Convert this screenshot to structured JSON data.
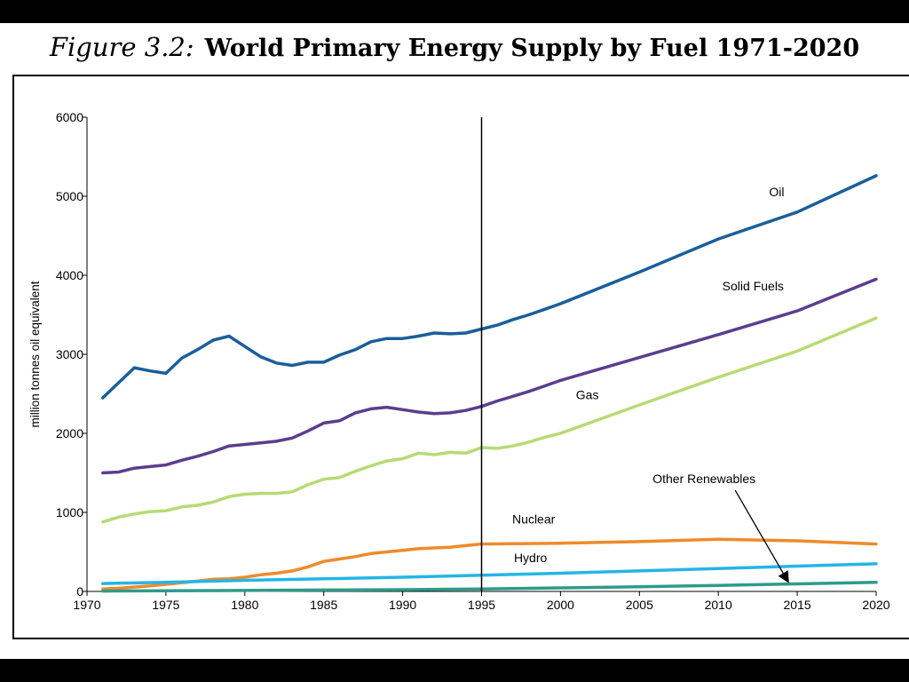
{
  "header": {
    "figure_label": "Figure 3.2:",
    "title": "World Primary Energy Supply by Fuel 1971-2020"
  },
  "chart_data": {
    "type": "line",
    "title": "World Primary Energy Supply by Fuel 1971-2020",
    "xlabel": "",
    "ylabel": "million tonnes oil equivalent",
    "xlim": [
      1970,
      2020
    ],
    "ylim": [
      0,
      6000
    ],
    "x_ticks": [
      1970,
      1975,
      1980,
      1985,
      1990,
      1995,
      2000,
      2005,
      2010,
      2015,
      2020
    ],
    "y_ticks": [
      0,
      1000,
      2000,
      3000,
      4000,
      5000,
      6000
    ],
    "grid": false,
    "legend": "inline labels",
    "reference_line": {
      "x": 1995
    },
    "series": [
      {
        "name": "Oil",
        "color": "#1b5e9b",
        "points": [
          [
            1971,
            2450
          ],
          [
            1972,
            2640
          ],
          [
            1973,
            2830
          ],
          [
            1974,
            2790
          ],
          [
            1975,
            2760
          ],
          [
            1976,
            2950
          ],
          [
            1977,
            3060
          ],
          [
            1978,
            3180
          ],
          [
            1979,
            3230
          ],
          [
            1980,
            3100
          ],
          [
            1981,
            2970
          ],
          [
            1982,
            2890
          ],
          [
            1983,
            2860
          ],
          [
            1984,
            2900
          ],
          [
            1985,
            2900
          ],
          [
            1986,
            2990
          ],
          [
            1987,
            3060
          ],
          [
            1988,
            3160
          ],
          [
            1989,
            3200
          ],
          [
            1990,
            3200
          ],
          [
            1991,
            3230
          ],
          [
            1992,
            3270
          ],
          [
            1993,
            3260
          ],
          [
            1994,
            3270
          ],
          [
            1995,
            3320
          ],
          [
            1996,
            3370
          ],
          [
            1997,
            3440
          ],
          [
            1998,
            3500
          ],
          [
            1999,
            3570
          ],
          [
            2000,
            3640
          ],
          [
            2005,
            4040
          ],
          [
            2010,
            4460
          ],
          [
            2015,
            4800
          ],
          [
            2020,
            5260
          ]
        ]
      },
      {
        "name": "Solid Fuels",
        "color": "#5b3e8f",
        "points": [
          [
            1971,
            1500
          ],
          [
            1972,
            1510
          ],
          [
            1973,
            1560
          ],
          [
            1974,
            1580
          ],
          [
            1975,
            1600
          ],
          [
            1976,
            1660
          ],
          [
            1977,
            1710
          ],
          [
            1978,
            1770
          ],
          [
            1979,
            1840
          ],
          [
            1980,
            1860
          ],
          [
            1981,
            1880
          ],
          [
            1982,
            1900
          ],
          [
            1983,
            1940
          ],
          [
            1984,
            2030
          ],
          [
            1985,
            2130
          ],
          [
            1986,
            2160
          ],
          [
            1987,
            2260
          ],
          [
            1988,
            2310
          ],
          [
            1989,
            2330
          ],
          [
            1990,
            2300
          ],
          [
            1991,
            2270
          ],
          [
            1992,
            2250
          ],
          [
            1993,
            2260
          ],
          [
            1994,
            2290
          ],
          [
            1995,
            2340
          ],
          [
            1996,
            2410
          ],
          [
            1997,
            2470
          ],
          [
            1998,
            2530
          ],
          [
            1999,
            2600
          ],
          [
            2000,
            2670
          ],
          [
            2005,
            2960
          ],
          [
            2010,
            3250
          ],
          [
            2015,
            3550
          ],
          [
            2020,
            3950
          ]
        ]
      },
      {
        "name": "Gas",
        "color": "#b7db74",
        "points": [
          [
            1971,
            880
          ],
          [
            1972,
            940
          ],
          [
            1973,
            980
          ],
          [
            1974,
            1010
          ],
          [
            1975,
            1020
          ],
          [
            1976,
            1070
          ],
          [
            1977,
            1090
          ],
          [
            1978,
            1130
          ],
          [
            1979,
            1200
          ],
          [
            1980,
            1230
          ],
          [
            1981,
            1240
          ],
          [
            1982,
            1240
          ],
          [
            1983,
            1260
          ],
          [
            1984,
            1350
          ],
          [
            1985,
            1420
          ],
          [
            1986,
            1440
          ],
          [
            1987,
            1520
          ],
          [
            1988,
            1590
          ],
          [
            1989,
            1650
          ],
          [
            1990,
            1680
          ],
          [
            1991,
            1750
          ],
          [
            1992,
            1730
          ],
          [
            1993,
            1760
          ],
          [
            1994,
            1750
          ],
          [
            1995,
            1820
          ],
          [
            1996,
            1810
          ],
          [
            1997,
            1840
          ],
          [
            1998,
            1890
          ],
          [
            1999,
            1950
          ],
          [
            2000,
            2000
          ],
          [
            2005,
            2360
          ],
          [
            2010,
            2710
          ],
          [
            2015,
            3040
          ],
          [
            2020,
            3460
          ]
        ]
      },
      {
        "name": "Nuclear",
        "color": "#f08a2b",
        "points": [
          [
            1971,
            30
          ],
          [
            1972,
            40
          ],
          [
            1973,
            55
          ],
          [
            1974,
            70
          ],
          [
            1975,
            90
          ],
          [
            1976,
            110
          ],
          [
            1977,
            130
          ],
          [
            1978,
            155
          ],
          [
            1979,
            160
          ],
          [
            1980,
            180
          ],
          [
            1981,
            210
          ],
          [
            1982,
            230
          ],
          [
            1983,
            260
          ],
          [
            1984,
            310
          ],
          [
            1985,
            380
          ],
          [
            1986,
            410
          ],
          [
            1987,
            440
          ],
          [
            1988,
            480
          ],
          [
            1989,
            500
          ],
          [
            1990,
            520
          ],
          [
            1991,
            540
          ],
          [
            1992,
            550
          ],
          [
            1993,
            560
          ],
          [
            1994,
            580
          ],
          [
            1995,
            600
          ],
          [
            2000,
            610
          ],
          [
            2005,
            630
          ],
          [
            2010,
            660
          ],
          [
            2015,
            640
          ],
          [
            2020,
            600
          ]
        ]
      },
      {
        "name": "Hydro",
        "color": "#25b5e6",
        "points": [
          [
            1971,
            100
          ],
          [
            1975,
            115
          ],
          [
            1980,
            140
          ],
          [
            1985,
            160
          ],
          [
            1990,
            180
          ],
          [
            1995,
            205
          ],
          [
            2000,
            230
          ],
          [
            2005,
            260
          ],
          [
            2010,
            290
          ],
          [
            2015,
            320
          ],
          [
            2020,
            350
          ]
        ]
      },
      {
        "name": "Other Renewables",
        "color": "#2e9b8a",
        "points": [
          [
            1971,
            5
          ],
          [
            1975,
            8
          ],
          [
            1980,
            12
          ],
          [
            1985,
            18
          ],
          [
            1990,
            22
          ],
          [
            1995,
            32
          ],
          [
            2000,
            45
          ],
          [
            2005,
            60
          ],
          [
            2010,
            75
          ],
          [
            2015,
            95
          ],
          [
            2020,
            115
          ]
        ]
      }
    ],
    "annotations": [
      {
        "text": "Oil",
        "x": 2013.7,
        "y": 5000
      },
      {
        "text": "Solid Fuels",
        "x": 2012.2,
        "y": 3810
      },
      {
        "text": "Gas",
        "x": 2001.7,
        "y": 2430
      },
      {
        "text": "Nuclear",
        "x": 1998.3,
        "y": 860
      },
      {
        "text": "Hydro",
        "x": 1998.1,
        "y": 370
      },
      {
        "text": "Other Renewables",
        "x": 2009.1,
        "y": 1370,
        "arrow_to": [
          2014.4,
          130
        ]
      }
    ]
  }
}
